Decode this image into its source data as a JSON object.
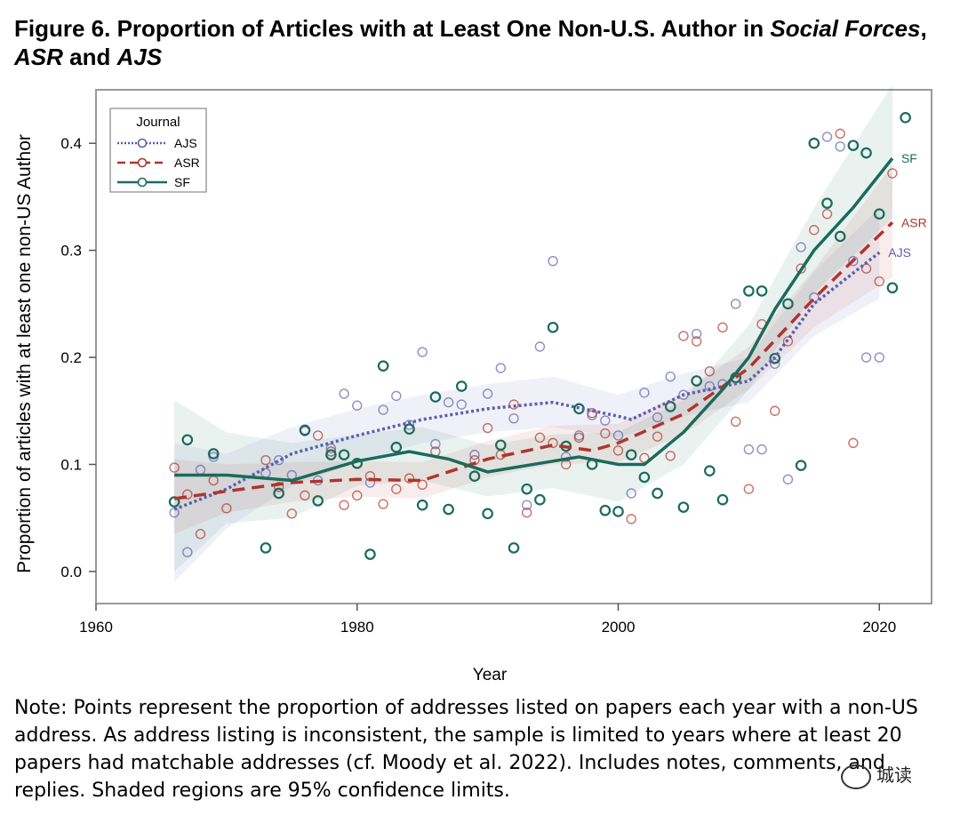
{
  "figure": {
    "label": "Figure 6.",
    "title_pre": "Proportion of Articles with at Least One Non-U.S. Author in",
    "title_it1": "Social Forces",
    "title_sep": ",",
    "title_it2": "ASR",
    "title_and": "and",
    "title_it3": "AJS"
  },
  "note": "Note: Points represent the proportion of addresses listed on papers each year with a non-US address. As address listing is inconsistent, the sample is limited to years where at least 20 papers had matchable addresses (cf. Moody et al. 2022). Includes notes, comments, and replies. Shaded regions are 95% confidence limits.",
  "watermark": "城读",
  "chart_data": {
    "type": "scatter",
    "xlabel": "Year",
    "ylabel": "Proportion of articles with at least one non-US Author",
    "xlim": [
      1960,
      2024
    ],
    "ylim": [
      -0.03,
      0.45
    ],
    "xticks": [
      1960,
      1980,
      2000,
      2020
    ],
    "yticks": [
      0.0,
      0.1,
      0.2,
      0.3,
      0.4
    ],
    "grid": false,
    "legend": {
      "title": "Journal",
      "placement": "top-left",
      "entries": [
        "AJS",
        "ASR",
        "SF"
      ]
    },
    "series": [
      {
        "name": "AJS",
        "color": "#5b5fae",
        "line_style": "dotted",
        "end_label": "AJS",
        "points": [
          [
            1966,
            0.055
          ],
          [
            1967,
            0.018
          ],
          [
            1968,
            0.095
          ],
          [
            1969,
            0.107
          ],
          [
            1973,
            0.092
          ],
          [
            1974,
            0.104
          ],
          [
            1975,
            0.09
          ],
          [
            1976,
            0.131
          ],
          [
            1977,
            0.085
          ],
          [
            1978,
            0.115
          ],
          [
            1979,
            0.166
          ],
          [
            1980,
            0.155
          ],
          [
            1981,
            0.083
          ],
          [
            1982,
            0.151
          ],
          [
            1983,
            0.164
          ],
          [
            1984,
            0.137
          ],
          [
            1985,
            0.205
          ],
          [
            1986,
            0.119
          ],
          [
            1987,
            0.158
          ],
          [
            1988,
            0.156
          ],
          [
            1989,
            0.109
          ],
          [
            1990,
            0.166
          ],
          [
            1991,
            0.19
          ],
          [
            1992,
            0.143
          ],
          [
            1993,
            0.062
          ],
          [
            1994,
            0.21
          ],
          [
            1995,
            0.29
          ],
          [
            1996,
            0.107
          ],
          [
            1997,
            0.127
          ],
          [
            1998,
            0.146
          ],
          [
            1999,
            0.141
          ],
          [
            2000,
            0.127
          ],
          [
            2001,
            0.073
          ],
          [
            2002,
            0.167
          ],
          [
            2003,
            0.144
          ],
          [
            2004,
            0.182
          ],
          [
            2005,
            0.165
          ],
          [
            2006,
            0.222
          ],
          [
            2007,
            0.173
          ],
          [
            2008,
            0.175
          ],
          [
            2009,
            0.25
          ],
          [
            2010,
            0.114
          ],
          [
            2011,
            0.114
          ],
          [
            2012,
            0.194
          ],
          [
            2013,
            0.086
          ],
          [
            2014,
            0.303
          ],
          [
            2015,
            0.256
          ],
          [
            2016,
            0.406
          ],
          [
            2017,
            0.397
          ],
          [
            2018,
            0.29
          ],
          [
            2019,
            0.2
          ],
          [
            2020,
            0.2
          ]
        ],
        "smooth": [
          [
            1966,
            0.058
          ],
          [
            1970,
            0.077
          ],
          [
            1975,
            0.11
          ],
          [
            1980,
            0.127
          ],
          [
            1985,
            0.142
          ],
          [
            1990,
            0.152
          ],
          [
            1995,
            0.158
          ],
          [
            2000,
            0.145
          ],
          [
            2001,
            0.142
          ],
          [
            2005,
            0.165
          ],
          [
            2010,
            0.178
          ],
          [
            2012,
            0.2
          ],
          [
            2015,
            0.25
          ],
          [
            2020,
            0.298
          ]
        ],
        "ci_lower": [
          [
            1966,
            -0.01
          ],
          [
            1970,
            0.04
          ],
          [
            1975,
            0.08
          ],
          [
            1980,
            0.102
          ],
          [
            1985,
            0.12
          ],
          [
            1990,
            0.13
          ],
          [
            1995,
            0.135
          ],
          [
            2000,
            0.125
          ],
          [
            2005,
            0.145
          ],
          [
            2010,
            0.158
          ],
          [
            2015,
            0.22
          ],
          [
            2020,
            0.255
          ]
        ],
        "ci_upper": [
          [
            1966,
            0.12
          ],
          [
            1970,
            0.11
          ],
          [
            1975,
            0.135
          ],
          [
            1980,
            0.152
          ],
          [
            1985,
            0.165
          ],
          [
            1990,
            0.175
          ],
          [
            1995,
            0.182
          ],
          [
            2000,
            0.165
          ],
          [
            2005,
            0.185
          ],
          [
            2010,
            0.2
          ],
          [
            2015,
            0.28
          ],
          [
            2020,
            0.34
          ]
        ]
      },
      {
        "name": "ASR",
        "color": "#b0352a",
        "line_style": "dashed",
        "end_label": "ASR",
        "points": [
          [
            1966,
            0.097
          ],
          [
            1967,
            0.072
          ],
          [
            1968,
            0.035
          ],
          [
            1969,
            0.085
          ],
          [
            1970,
            0.059
          ],
          [
            1973,
            0.104
          ],
          [
            1974,
            0.079
          ],
          [
            1975,
            0.054
          ],
          [
            1976,
            0.071
          ],
          [
            1977,
            0.127
          ],
          [
            1978,
            0.112
          ],
          [
            1979,
            0.062
          ],
          [
            1980,
            0.071
          ],
          [
            1981,
            0.089
          ],
          [
            1982,
            0.063
          ],
          [
            1983,
            0.077
          ],
          [
            1984,
            0.087
          ],
          [
            1985,
            0.081
          ],
          [
            1986,
            0.112
          ],
          [
            1987,
            0.058
          ],
          [
            1989,
            0.104
          ],
          [
            1990,
            0.134
          ],
          [
            1991,
            0.109
          ],
          [
            1992,
            0.156
          ],
          [
            1993,
            0.055
          ],
          [
            1994,
            0.125
          ],
          [
            1995,
            0.12
          ],
          [
            1996,
            0.1
          ],
          [
            1997,
            0.125
          ],
          [
            1998,
            0.148
          ],
          [
            1999,
            0.129
          ],
          [
            2000,
            0.113
          ],
          [
            2001,
            0.049
          ],
          [
            2002,
            0.106
          ],
          [
            2003,
            0.126
          ],
          [
            2004,
            0.108
          ],
          [
            2005,
            0.22
          ],
          [
            2006,
            0.215
          ],
          [
            2007,
            0.187
          ],
          [
            2008,
            0.228
          ],
          [
            2009,
            0.14
          ],
          [
            2010,
            0.077
          ],
          [
            2011,
            0.231
          ],
          [
            2012,
            0.15
          ],
          [
            2013,
            0.215
          ],
          [
            2014,
            0.283
          ],
          [
            2015,
            0.319
          ],
          [
            2016,
            0.334
          ],
          [
            2017,
            0.409
          ],
          [
            2018,
            0.12
          ],
          [
            2019,
            0.283
          ],
          [
            2020,
            0.271
          ],
          [
            2021,
            0.372
          ]
        ],
        "smooth": [
          [
            1966,
            0.068
          ],
          [
            1970,
            0.075
          ],
          [
            1975,
            0.083
          ],
          [
            1980,
            0.086
          ],
          [
            1985,
            0.085
          ],
          [
            1990,
            0.105
          ],
          [
            1995,
            0.118
          ],
          [
            1998,
            0.113
          ],
          [
            2000,
            0.12
          ],
          [
            2005,
            0.147
          ],
          [
            2010,
            0.19
          ],
          [
            2015,
            0.255
          ],
          [
            2021,
            0.326
          ]
        ],
        "ci_lower": [
          [
            1966,
            0.035
          ],
          [
            1970,
            0.055
          ],
          [
            1975,
            0.065
          ],
          [
            1980,
            0.07
          ],
          [
            1985,
            0.068
          ],
          [
            1990,
            0.088
          ],
          [
            1995,
            0.1
          ],
          [
            2000,
            0.102
          ],
          [
            2005,
            0.128
          ],
          [
            2010,
            0.17
          ],
          [
            2015,
            0.228
          ],
          [
            2021,
            0.275
          ]
        ],
        "ci_upper": [
          [
            1966,
            0.105
          ],
          [
            1970,
            0.1
          ],
          [
            1975,
            0.102
          ],
          [
            1980,
            0.103
          ],
          [
            1985,
            0.102
          ],
          [
            1990,
            0.122
          ],
          [
            1995,
            0.136
          ],
          [
            2000,
            0.138
          ],
          [
            2005,
            0.167
          ],
          [
            2010,
            0.21
          ],
          [
            2015,
            0.282
          ],
          [
            2021,
            0.38
          ]
        ]
      },
      {
        "name": "SF",
        "color": "#1a6b5a",
        "line_style": "solid",
        "end_label": "SF",
        "points": [
          [
            1966,
            0.065
          ],
          [
            1967,
            0.123
          ],
          [
            1969,
            0.11
          ],
          [
            1973,
            0.022
          ],
          [
            1974,
            0.073
          ],
          [
            1976,
            0.132
          ],
          [
            1977,
            0.066
          ],
          [
            1978,
            0.109
          ],
          [
            1979,
            0.109
          ],
          [
            1980,
            0.101
          ],
          [
            1981,
            0.016
          ],
          [
            1982,
            0.192
          ],
          [
            1983,
            0.116
          ],
          [
            1984,
            0.133
          ],
          [
            1985,
            0.062
          ],
          [
            1986,
            0.163
          ],
          [
            1987,
            0.058
          ],
          [
            1988,
            0.173
          ],
          [
            1989,
            0.089
          ],
          [
            1990,
            0.054
          ],
          [
            1991,
            0.118
          ],
          [
            1992,
            0.022
          ],
          [
            1993,
            0.077
          ],
          [
            1994,
            0.067
          ],
          [
            1995,
            0.228
          ],
          [
            1996,
            0.117
          ],
          [
            1997,
            0.152
          ],
          [
            1998,
            0.1
          ],
          [
            1999,
            0.057
          ],
          [
            2000,
            0.056
          ],
          [
            2001,
            0.109
          ],
          [
            2002,
            0.088
          ],
          [
            2003,
            0.073
          ],
          [
            2004,
            0.154
          ],
          [
            2005,
            0.06
          ],
          [
            2006,
            0.178
          ],
          [
            2007,
            0.094
          ],
          [
            2008,
            0.067
          ],
          [
            2009,
            0.181
          ],
          [
            2010,
            0.262
          ],
          [
            2011,
            0.262
          ],
          [
            2012,
            0.199
          ],
          [
            2013,
            0.25
          ],
          [
            2014,
            0.099
          ],
          [
            2015,
            0.4
          ],
          [
            2016,
            0.344
          ],
          [
            2017,
            0.313
          ],
          [
            2018,
            0.398
          ],
          [
            2019,
            0.391
          ],
          [
            2020,
            0.334
          ],
          [
            2021,
            0.265
          ],
          [
            2022,
            0.424
          ]
        ],
        "smooth": [
          [
            1966,
            0.09
          ],
          [
            1970,
            0.09
          ],
          [
            1975,
            0.085
          ],
          [
            1980,
            0.103
          ],
          [
            1984,
            0.112
          ],
          [
            1987,
            0.105
          ],
          [
            1990,
            0.093
          ],
          [
            1995,
            0.103
          ],
          [
            1997,
            0.107
          ],
          [
            2000,
            0.1
          ],
          [
            2002,
            0.1
          ],
          [
            2005,
            0.13
          ],
          [
            2008,
            0.17
          ],
          [
            2010,
            0.2
          ],
          [
            2012,
            0.245
          ],
          [
            2015,
            0.3
          ],
          [
            2018,
            0.34
          ],
          [
            2021,
            0.386
          ]
        ],
        "ci_lower": [
          [
            1966,
            0.0
          ],
          [
            1970,
            0.045
          ],
          [
            1975,
            0.05
          ],
          [
            1980,
            0.08
          ],
          [
            1985,
            0.085
          ],
          [
            1990,
            0.07
          ],
          [
            1995,
            0.078
          ],
          [
            2000,
            0.065
          ],
          [
            2005,
            0.1
          ],
          [
            2010,
            0.17
          ],
          [
            2015,
            0.26
          ],
          [
            2021,
            0.33
          ]
        ],
        "ci_upper": [
          [
            1966,
            0.16
          ],
          [
            1970,
            0.13
          ],
          [
            1975,
            0.12
          ],
          [
            1980,
            0.128
          ],
          [
            1985,
            0.135
          ],
          [
            1990,
            0.118
          ],
          [
            1995,
            0.128
          ],
          [
            2000,
            0.13
          ],
          [
            2005,
            0.16
          ],
          [
            2010,
            0.23
          ],
          [
            2015,
            0.34
          ],
          [
            2021,
            0.455
          ]
        ]
      }
    ]
  }
}
